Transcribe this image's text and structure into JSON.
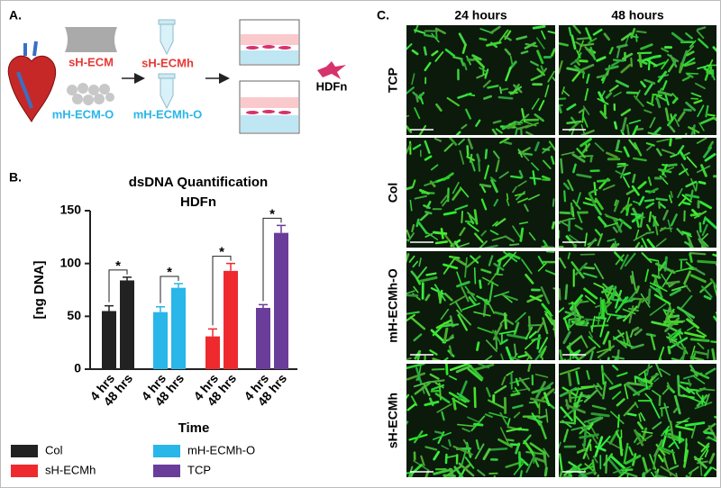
{
  "panel_a": {
    "label": "A.",
    "sources": [
      "sH-ECM",
      "mH-ECM-O"
    ],
    "hydrogels": [
      "sH-ECMh",
      "mH-ECMh-O"
    ],
    "cells": "HDFn"
  },
  "chart_data": {
    "label": "B.",
    "type": "bar",
    "title": "dsDNA Quantification",
    "subtitle": "HDFn",
    "x_label": "Time",
    "y_label": "[ng DNA]",
    "categories": [
      "4 hrs",
      "48 hrs"
    ],
    "series": [
      {
        "name": "Col",
        "color": "#222222",
        "values": [
          55,
          84
        ],
        "errors": [
          5,
          3
        ],
        "significance": "*"
      },
      {
        "name": "mH-ECMh-O",
        "color": "#29b6e8",
        "values": [
          54,
          77
        ],
        "errors": [
          5,
          4
        ],
        "significance": "*"
      },
      {
        "name": "sH-ECMh",
        "color": "#ee2a2e",
        "values": [
          31,
          93
        ],
        "errors": [
          7,
          7
        ],
        "significance": "*"
      },
      {
        "name": "TCP",
        "color": "#6a3d9a",
        "values": [
          58,
          129
        ],
        "errors": [
          3,
          7
        ],
        "significance": "*"
      }
    ],
    "ylim": [
      0,
      150
    ],
    "yticks": [
      0,
      50,
      100,
      150
    ],
    "grid": false
  },
  "panel_c": {
    "label": "C.",
    "columns": [
      "24 hours",
      "48 hours"
    ],
    "rows": [
      "TCP",
      "Col",
      "mH-ECMh-O",
      "sH-ECMh"
    ]
  }
}
